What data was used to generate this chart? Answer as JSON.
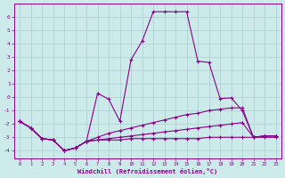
{
  "xlabel": "Windchill (Refroidissement éolien,°C)",
  "xlim": [
    -0.5,
    23.5
  ],
  "ylim": [
    -4.6,
    7.0
  ],
  "yticks": [
    -4,
    -3,
    -2,
    -1,
    0,
    1,
    2,
    3,
    4,
    5,
    6
  ],
  "xticks": [
    0,
    1,
    2,
    3,
    4,
    5,
    6,
    7,
    8,
    9,
    10,
    11,
    12,
    13,
    14,
    15,
    16,
    17,
    18,
    19,
    20,
    21,
    22,
    23
  ],
  "background_color": "#cceaea",
  "line_color": "#880088",
  "lines": [
    {
      "x": [
        0,
        1,
        2,
        3,
        4,
        5,
        6,
        7,
        8,
        9,
        10,
        11,
        12,
        13,
        14,
        15,
        16,
        17,
        18,
        19,
        20,
        21,
        22,
        23
      ],
      "y": [
        -1.8,
        -2.3,
        -3.1,
        -3.2,
        -4.0,
        -3.8,
        -3.3,
        0.3,
        -0.15,
        -1.8,
        2.8,
        4.2,
        6.4,
        6.4,
        6.4,
        6.4,
        2.7,
        2.6,
        -0.1,
        -0.05,
        -1.0,
        -3.0,
        -3.0,
        -3.0
      ]
    },
    {
      "x": [
        0,
        1,
        2,
        3,
        4,
        5,
        6,
        7,
        8,
        9,
        10,
        11,
        12,
        13,
        14,
        15,
        16,
        17,
        18,
        19,
        20,
        21,
        22,
        23
      ],
      "y": [
        -1.8,
        -2.3,
        -3.1,
        -3.2,
        -4.0,
        -3.8,
        -3.3,
        -3.0,
        -2.7,
        -2.5,
        -2.3,
        -2.1,
        -1.9,
        -1.7,
        -1.5,
        -1.3,
        -1.2,
        -1.0,
        -0.9,
        -0.8,
        -0.8,
        -3.0,
        -2.9,
        -2.9
      ]
    },
    {
      "x": [
        0,
        1,
        2,
        3,
        4,
        5,
        6,
        7,
        8,
        9,
        10,
        11,
        12,
        13,
        14,
        15,
        16,
        17,
        18,
        19,
        20,
        21,
        22,
        23
      ],
      "y": [
        -1.8,
        -2.3,
        -3.1,
        -3.2,
        -4.0,
        -3.8,
        -3.3,
        -3.2,
        -3.1,
        -3.0,
        -2.9,
        -2.8,
        -2.7,
        -2.6,
        -2.5,
        -2.4,
        -2.3,
        -2.2,
        -2.1,
        -2.0,
        -1.9,
        -3.0,
        -2.9,
        -2.9
      ]
    },
    {
      "x": [
        0,
        1,
        2,
        3,
        4,
        5,
        6,
        7,
        8,
        9,
        10,
        11,
        12,
        13,
        14,
        15,
        16,
        17,
        18,
        19,
        20,
        21,
        22,
        23
      ],
      "y": [
        -1.8,
        -2.3,
        -3.1,
        -3.2,
        -4.0,
        -3.8,
        -3.3,
        -3.2,
        -3.2,
        -3.2,
        -3.1,
        -3.1,
        -3.1,
        -3.1,
        -3.1,
        -3.1,
        -3.1,
        -3.0,
        -3.0,
        -3.0,
        -3.0,
        -3.0,
        -2.9,
        -2.9
      ]
    }
  ]
}
